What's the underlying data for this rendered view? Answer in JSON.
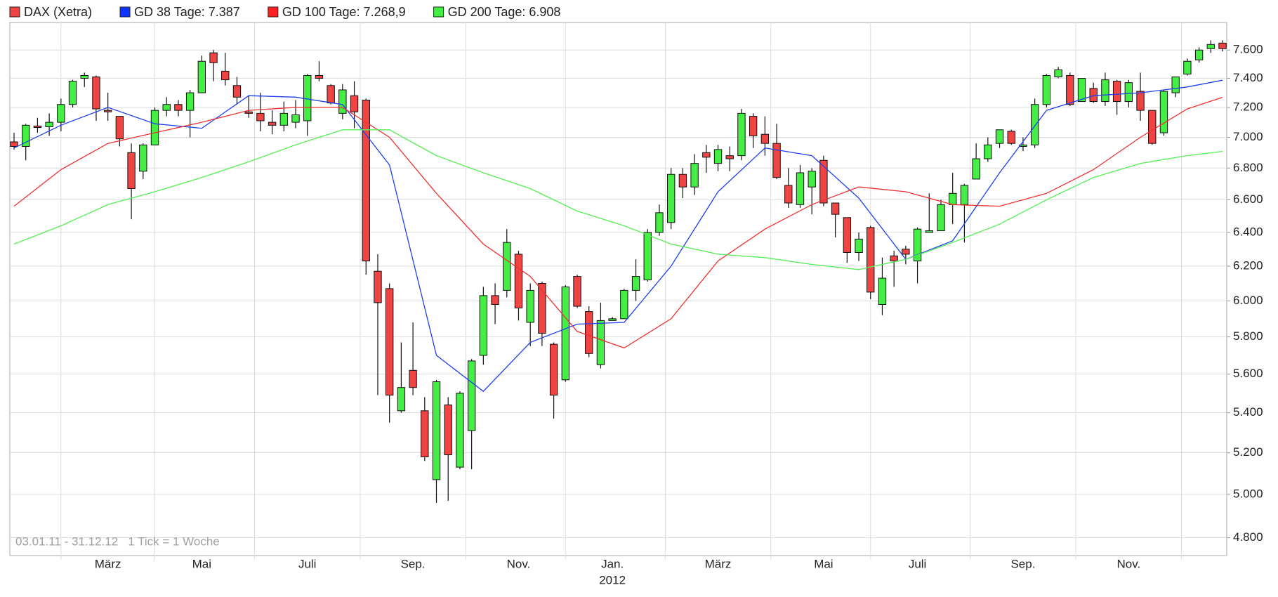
{
  "chart_data": {
    "type": "candlestick",
    "annotations": [
      "03.01.11 - 31.12.12",
      "1 Tick = 1 Woche"
    ],
    "x_sublabel": "2012",
    "xlim": [
      0,
      103
    ],
    "xticks": [
      {
        "value": 8,
        "label": "März"
      },
      {
        "value": 16,
        "label": "Mai"
      },
      {
        "value": 25,
        "label": "Juli"
      },
      {
        "value": 34,
        "label": "Sep."
      },
      {
        "value": 43,
        "label": "Nov."
      },
      {
        "value": 51,
        "label": "Jan."
      },
      {
        "value": 60,
        "label": "März"
      },
      {
        "value": 69,
        "label": "Mai"
      },
      {
        "value": 77,
        "label": "Juli"
      },
      {
        "value": 86,
        "label": "Sep."
      },
      {
        "value": 95,
        "label": "Nov."
      }
    ],
    "ylim": [
      4720,
      7800
    ],
    "log_y": true,
    "grid": true,
    "yticks": [
      {
        "value": 4800,
        "label": "4.800"
      },
      {
        "value": 5000,
        "label": "5.000"
      },
      {
        "value": 5200,
        "label": "5.200"
      },
      {
        "value": 5400,
        "label": "5.400"
      },
      {
        "value": 5600,
        "label": "5.600"
      },
      {
        "value": 5800,
        "label": "5.800"
      },
      {
        "value": 6000,
        "label": "6.000"
      },
      {
        "value": 6200,
        "label": "6.200"
      },
      {
        "value": 6400,
        "label": "6.400"
      },
      {
        "value": 6600,
        "label": "6.600"
      },
      {
        "value": 6800,
        "label": "6.800"
      },
      {
        "value": 7000,
        "label": "7.000"
      },
      {
        "value": 7200,
        "label": "7.200"
      },
      {
        "value": 7400,
        "label": "7.400"
      },
      {
        "value": 7600,
        "label": "7.600"
      }
    ],
    "series": [
      {
        "name": "DAX (Xetra)",
        "type": "candlestick",
        "color": "#ee4444",
        "up_color": "#44ee44",
        "open": [
          6970,
          6940,
          7075,
          7070,
          7100,
          7220,
          7400,
          7410,
          7180,
          7140,
          6900,
          6780,
          6950,
          7180,
          7220,
          7180,
          7300,
          7580,
          7450,
          7350,
          7170,
          7160,
          7100,
          7080,
          7100,
          7110,
          7420,
          7350,
          7160,
          7280,
          7250,
          6170,
          6070,
          5410,
          5620,
          5410,
          5070,
          5440,
          5130,
          5310,
          5700,
          6030,
          6060,
          6270,
          5880,
          6100,
          5760,
          5570,
          6140,
          5940,
          5650,
          5890,
          5900,
          6060,
          6120,
          6400,
          6460,
          6760,
          6680,
          6900,
          6830,
          6880,
          6880,
          7140,
          7020,
          6960,
          6690,
          6570,
          6680,
          6850,
          6580,
          6490,
          6280,
          6430,
          5980,
          6260,
          6300,
          6230,
          6400,
          6410,
          6570,
          6570,
          6730,
          6860,
          6960,
          7040,
          6940,
          6950,
          7220,
          7410,
          7420,
          7240,
          7330,
          7240,
          7380,
          7240,
          7310,
          7180,
          7030,
          7300,
          7430,
          7530,
          7610,
          7650
        ],
        "high": [
          7030,
          7090,
          7130,
          7160,
          7260,
          7390,
          7440,
          7420,
          7300,
          7140,
          6960,
          6960,
          7200,
          7270,
          7250,
          7320,
          7560,
          7600,
          7580,
          7410,
          7280,
          7300,
          7180,
          7240,
          7250,
          7430,
          7520,
          7360,
          7360,
          7380,
          7260,
          6270,
          6100,
          5770,
          5880,
          5480,
          5570,
          5480,
          5510,
          5680,
          6080,
          6100,
          6420,
          6290,
          6100,
          6110,
          5770,
          6090,
          6150,
          5970,
          5990,
          5910,
          6070,
          6240,
          6420,
          6570,
          6800,
          6800,
          6890,
          6950,
          6950,
          6940,
          7190,
          7160,
          7140,
          7090,
          6800,
          6820,
          6800,
          6880,
          6580,
          6490,
          6400,
          6440,
          6250,
          6290,
          6320,
          6430,
          6640,
          6600,
          6770,
          6700,
          6960,
          7000,
          7050,
          7050,
          7000,
          7260,
          7430,
          7480,
          7440,
          7400,
          7370,
          7440,
          7390,
          7390,
          7440,
          7180,
          7320,
          7410,
          7540,
          7620,
          7670,
          7670
        ],
        "low": [
          6920,
          6850,
          7030,
          7010,
          7040,
          7200,
          7340,
          7110,
          7110,
          6940,
          6480,
          6730,
          6950,
          7140,
          7140,
          7000,
          7300,
          7380,
          7350,
          7220,
          7130,
          7040,
          7020,
          7040,
          7060,
          7010,
          7380,
          7220,
          7120,
          7060,
          6150,
          5490,
          5350,
          5400,
          5490,
          5160,
          4960,
          4970,
          5120,
          5120,
          5650,
          5870,
          6020,
          5890,
          5750,
          5750,
          5370,
          5560,
          5960,
          5690,
          5630,
          5890,
          5900,
          6000,
          6110,
          6380,
          6420,
          6610,
          6630,
          6770,
          6780,
          6780,
          6850,
          6930,
          6880,
          6730,
          6550,
          6550,
          6510,
          6560,
          6370,
          6220,
          6230,
          6010,
          5920,
          6080,
          6210,
          6100,
          6400,
          6410,
          6450,
          6340,
          6730,
          6840,
          6930,
          6950,
          6910,
          6930,
          7200,
          7400,
          7210,
          7240,
          7230,
          7210,
          7150,
          7200,
          7110,
          6950,
          7010,
          7270,
          7420,
          7510,
          7580,
          7590
        ],
        "close": [
          6940,
          7080,
          7065,
          7100,
          7220,
          7380,
          7420,
          7190,
          7170,
          6990,
          6670,
          6950,
          7180,
          7220,
          7180,
          7300,
          7520,
          7510,
          7390,
          7270,
          7160,
          7110,
          7080,
          7160,
          7150,
          7420,
          7400,
          7230,
          7320,
          7170,
          6230,
          5990,
          5490,
          5530,
          5530,
          5180,
          5560,
          5190,
          5500,
          5670,
          6030,
          5980,
          6340,
          5960,
          6060,
          5820,
          5490,
          6080,
          5970,
          5710,
          5890,
          5900,
          6060,
          6140,
          6400,
          6520,
          6760,
          6680,
          6830,
          6870,
          6920,
          6860,
          7160,
          7010,
          6960,
          6740,
          6580,
          6770,
          6780,
          6580,
          6510,
          6280,
          6360,
          6050,
          6130,
          6230,
          6270,
          6420,
          6410,
          6570,
          6640,
          6690,
          6860,
          6950,
          7050,
          6960,
          6950,
          7220,
          7420,
          7460,
          7220,
          7400,
          7240,
          7390,
          7240,
          7370,
          7180,
          6960,
          7310,
          7410,
          7520,
          7600,
          7640,
          7610
        ]
      },
      {
        "name": "GD 38 Tage: 7.387",
        "type": "line",
        "color": "#1f3ff0",
        "legend_color": "#1034ff",
        "x": [
          0,
          4,
          8,
          12,
          16,
          20,
          24,
          28,
          32,
          36,
          40,
          44,
          48,
          52,
          56,
          60,
          64,
          68,
          72,
          76,
          80,
          84,
          88,
          92,
          96,
          100,
          103
        ],
        "values": [
          6930,
          7080,
          7200,
          7090,
          7060,
          7280,
          7270,
          7220,
          6820,
          5700,
          5510,
          5770,
          5870,
          5880,
          6200,
          6650,
          6930,
          6880,
          6610,
          6240,
          6350,
          6770,
          7180,
          7280,
          7300,
          7340,
          7387
        ]
      },
      {
        "name": "GD 100 Tage: 7.268,9",
        "type": "line",
        "color": "#ee3030",
        "legend_color": "#ff2020",
        "x": [
          0,
          4,
          8,
          12,
          16,
          20,
          24,
          28,
          32,
          36,
          40,
          44,
          48,
          52,
          56,
          60,
          64,
          68,
          72,
          76,
          80,
          84,
          88,
          92,
          96,
          100,
          103
        ],
        "values": [
          6560,
          6790,
          6960,
          7030,
          7100,
          7180,
          7200,
          7200,
          7000,
          6640,
          6330,
          6140,
          5830,
          5740,
          5900,
          6230,
          6420,
          6570,
          6680,
          6650,
          6570,
          6560,
          6640,
          6790,
          7000,
          7190,
          7268.9
        ]
      },
      {
        "name": "GD 200 Tage: 6.908",
        "type": "line",
        "color": "#55ee55",
        "legend_color": "#44ee44",
        "x": [
          0,
          4,
          8,
          12,
          16,
          20,
          24,
          28,
          32,
          36,
          40,
          44,
          48,
          52,
          56,
          60,
          64,
          68,
          72,
          76,
          80,
          84,
          88,
          92,
          96,
          100,
          103
        ],
        "values": [
          6330,
          6440,
          6570,
          6650,
          6740,
          6840,
          6950,
          7050,
          7050,
          6880,
          6770,
          6670,
          6530,
          6440,
          6330,
          6270,
          6250,
          6210,
          6180,
          6240,
          6340,
          6450,
          6600,
          6740,
          6830,
          6880,
          6908
        ]
      }
    ]
  }
}
